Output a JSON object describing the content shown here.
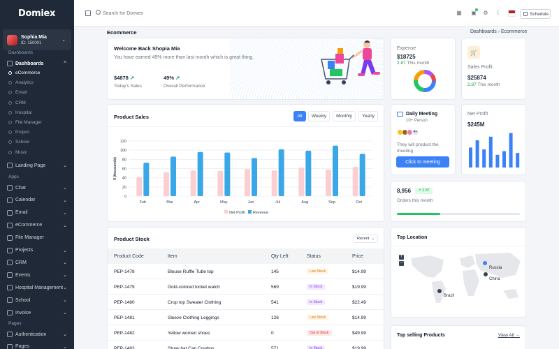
{
  "sidebar": {
    "brand": "Domiex",
    "user": {
      "name": "Sophia Mia",
      "id": "ID: 150001"
    },
    "sections": {
      "dashboards": "Dashboards",
      "apps": "Apps",
      "pages": "Pages"
    },
    "dashboards_label": "Dashboards",
    "dashboard_items": [
      "eCommerce",
      "Analytics",
      "Email",
      "CRM",
      "Hospital",
      "File Manager",
      "Project",
      "School",
      "Music"
    ],
    "landing_page": "Landing Page",
    "apps_items": [
      "Chat",
      "Calendar",
      "Email",
      "eCommerce",
      "File Manager",
      "Projects",
      "CRM",
      "Events",
      "Hospital Management",
      "School",
      "Invoice"
    ],
    "pages_items": [
      "Authentication",
      "Pages"
    ]
  },
  "topbar": {
    "search_placeholder": "Search for Domiex",
    "schedule_label": "Schedule"
  },
  "page": {
    "title": "Ecommerce",
    "breadcrumb": [
      "Dashboards",
      "Ecommerce"
    ]
  },
  "welcome": {
    "title": "Welcome Back Shopia Mia",
    "message": "You have earned 49% more than last month which is great thing.",
    "stat1_value": "$4878",
    "stat1_label": "Today's Sales",
    "stat2_value": "49%",
    "stat2_label": "Overall Performance"
  },
  "expense": {
    "label": "Expense",
    "value": "$18725",
    "change": "2.87",
    "suffix": "This month"
  },
  "sales_profit": {
    "label": "Sales Profit",
    "value": "$25874",
    "change": "2.87",
    "suffix": "This month"
  },
  "daily_meeting": {
    "title": "Daily Meeting",
    "subtitle": "10+ Person",
    "more": "4+",
    "text": "They will product the meeting",
    "button": "Click to meeting"
  },
  "net_profit": {
    "label": "Net Profit",
    "value": "$245M",
    "bars": [
      0.55,
      0.75,
      0.5,
      0.85,
      0.35,
      0.45,
      0.95,
      0.4
    ]
  },
  "orders": {
    "value": "8,956",
    "badge": "2.87",
    "label": "Orders this month",
    "progress": 0.35
  },
  "product_sales": {
    "title": "Product Sales",
    "tabs": [
      "All",
      "Weekly",
      "Monthly",
      "Yearly"
    ],
    "active_tab": "All"
  },
  "chart_data": {
    "type": "bar",
    "ylabel": "$ (thousands)",
    "categories": [
      "Feb",
      "Mar",
      "Apr",
      "May",
      "Jun",
      "Jul",
      "Aug",
      "Sep",
      "Oct"
    ],
    "ylim": [
      0,
      120
    ],
    "yticks": [
      0,
      20,
      40,
      60,
      80,
      100,
      120
    ],
    "grid": true,
    "legend": "bottom",
    "series": [
      {
        "name": "Net Profit",
        "color": "#fbcfd1",
        "values": [
          42,
          52,
          56,
          55,
          59,
          56,
          62,
          58,
          64
        ]
      },
      {
        "name": "Revenue",
        "color": "#3aa7e8",
        "values": [
          73,
          86,
          96,
          95,
          83,
          102,
          99,
          110,
          92
        ]
      }
    ]
  },
  "product_stock": {
    "title": "Product Stock",
    "filter": "Recent",
    "columns": [
      "Product Code",
      "Item",
      "Qty Left",
      "Status",
      "Price"
    ],
    "rows": [
      [
        "PEP-1478",
        "Blouse Ruffle Tube top",
        "145",
        "Low Stock",
        "$14.99"
      ],
      [
        "PEP-1479",
        "Gold-colored locket watch",
        "569",
        "In Stock",
        "$19.99"
      ],
      [
        "PEP-1480",
        "Crop top Sweater Clothing",
        "541",
        "In Stock",
        "$22.49"
      ],
      [
        "PEP-1481",
        "Sleeve Clothing Leggings",
        "126",
        "Low Stock",
        "$14.99"
      ],
      [
        "PEP-1482",
        "Yellow women shoes",
        "0",
        "Out of Stock",
        "$49.99"
      ],
      [
        "PEP-1483",
        "Straw hat Cap Cowboy",
        "571",
        "In Stock",
        "$19.99"
      ]
    ]
  },
  "top_location": {
    "title": "Top Location",
    "markers": [
      "Russia",
      "China",
      "Brazil"
    ]
  },
  "top_selling": {
    "title": "Top selling Products",
    "view_all": "View All →"
  }
}
